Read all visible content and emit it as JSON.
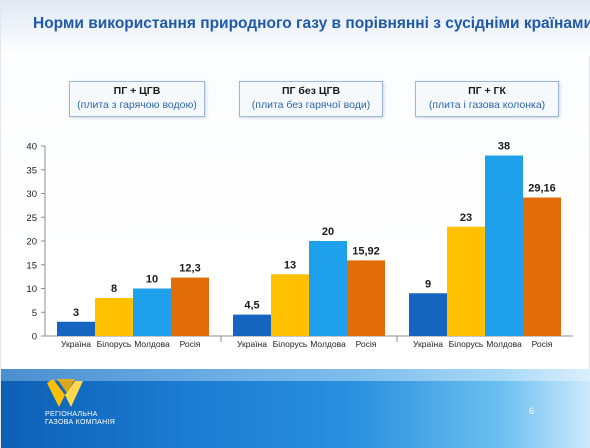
{
  "title": "Норми використання природного газу в порівнянні з сусідніми країнами",
  "colors": {
    "ukraine": "#1565c0",
    "belarus": "#ffc000",
    "moldova": "#1ea0ea",
    "russia": "#e36c0a",
    "title": "#1f5aa8",
    "footer": "#1b7bd0"
  },
  "chart_data": {
    "type": "bar",
    "ylim": [
      0,
      40
    ],
    "yticks": [
      "0",
      "5",
      "10",
      "15",
      "20",
      "25",
      "30",
      "35",
      "40"
    ],
    "grid": false,
    "legend": "none",
    "groups": [
      {
        "heading": "ПГ + ЦГВ",
        "subheading": "(плита з гарячою водою)",
        "categories": [
          "Україна",
          "Білорусь",
          "Молдова",
          "Росія"
        ],
        "values": [
          3,
          8,
          10,
          12.3
        ],
        "labels": [
          "3",
          "8",
          "10",
          "12,3"
        ]
      },
      {
        "heading": "ПГ без ЦГВ",
        "subheading": "(плита без гарячої води)",
        "categories": [
          "Україна",
          "Білорусь",
          "Молдова",
          "Росія"
        ],
        "values": [
          4.5,
          13,
          20,
          15.92
        ],
        "labels": [
          "4,5",
          "13",
          "20",
          "15,92"
        ]
      },
      {
        "heading": "ПГ + ГК",
        "subheading": "(плита і газова колонка)",
        "categories": [
          "Україна",
          "Білорусь",
          "Молдова",
          "Росія"
        ],
        "values": [
          9,
          23,
          38,
          29.16
        ],
        "labels": [
          "9",
          "23",
          "38",
          "29,16"
        ]
      }
    ]
  },
  "footer": {
    "company_line1": "РЕГІОНАЛЬНА",
    "company_line2": "ГАЗОВА КОМПАНІЯ",
    "page_number": "6"
  },
  "icons": {
    "logo": "company-logo-icon"
  }
}
